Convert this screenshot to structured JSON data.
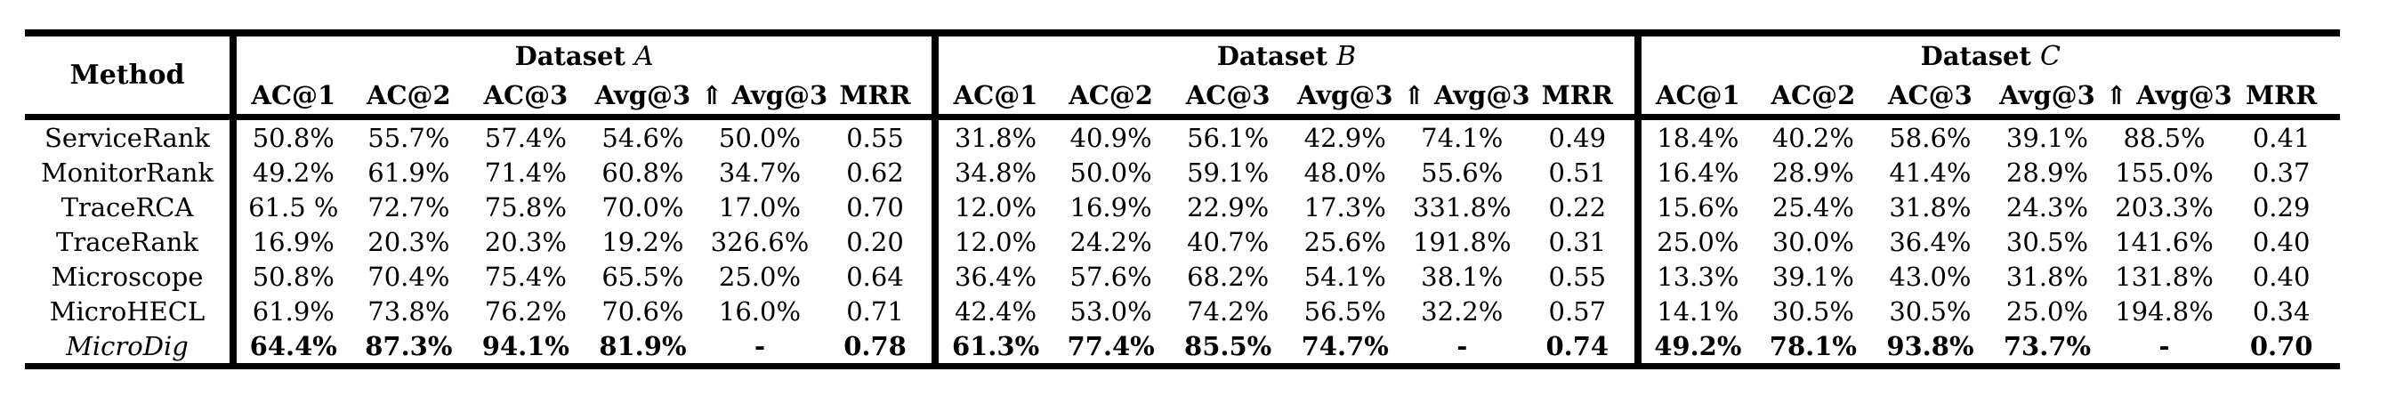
{
  "colors": {
    "text": "#000000",
    "background": "#ffffff",
    "rule": "#000000"
  },
  "table": {
    "method_header": "Method",
    "groups": [
      {
        "label": "Dataset",
        "letter": "A",
        "columns": [
          "AC@1",
          "AC@2",
          "AC@3",
          "Avg@3",
          "⇑ Avg@3",
          "MRR"
        ]
      },
      {
        "label": "Dataset",
        "letter": "B",
        "columns": [
          "AC@1",
          "AC@2",
          "AC@3",
          "Avg@3",
          "⇑ Avg@3",
          "MRR"
        ]
      },
      {
        "label": "Dataset",
        "letter": "C",
        "columns": [
          "AC@1",
          "AC@2",
          "AC@3",
          "Avg@3",
          "⇑ Avg@3",
          "MRR"
        ]
      }
    ],
    "rows": [
      {
        "method": "ServiceRank",
        "italic": false,
        "bold": false,
        "values": [
          "50.8%",
          "55.7%",
          "57.4%",
          "54.6%",
          "50.0%",
          "0.55",
          "31.8%",
          "40.9%",
          "56.1%",
          "42.9%",
          "74.1%",
          "0.49",
          "18.4%",
          "40.2%",
          "58.6%",
          "39.1%",
          "88.5%",
          "0.41"
        ]
      },
      {
        "method": "MonitorRank",
        "italic": false,
        "bold": false,
        "values": [
          "49.2%",
          "61.9%",
          "71.4%",
          "60.8%",
          "34.7%",
          "0.62",
          "34.8%",
          "50.0%",
          "59.1%",
          "48.0%",
          "55.6%",
          "0.51",
          "16.4%",
          "28.9%",
          "41.4%",
          "28.9%",
          "155.0%",
          "0.37"
        ]
      },
      {
        "method": "TraceRCA",
        "italic": false,
        "bold": false,
        "values": [
          "61.5 %",
          "72.7%",
          "75.8%",
          "70.0%",
          "17.0%",
          "0.70",
          "12.0%",
          "16.9%",
          "22.9%",
          "17.3%",
          "331.8%",
          "0.22",
          "15.6%",
          "25.4%",
          "31.8%",
          "24.3%",
          "203.3%",
          "0.29"
        ]
      },
      {
        "method": "TraceRank",
        "italic": false,
        "bold": false,
        "values": [
          "16.9%",
          "20.3%",
          "20.3%",
          "19.2%",
          "326.6%",
          "0.20",
          "12.0%",
          "24.2%",
          "40.7%",
          "25.6%",
          "191.8%",
          "0.31",
          "25.0%",
          "30.0%",
          "36.4%",
          "30.5%",
          "141.6%",
          "0.40"
        ]
      },
      {
        "method": "Microscope",
        "italic": false,
        "bold": false,
        "values": [
          "50.8%",
          "70.4%",
          "75.4%",
          "65.5%",
          "25.0%",
          "0.64",
          "36.4%",
          "57.6%",
          "68.2%",
          "54.1%",
          "38.1%",
          "0.55",
          "13.3%",
          "39.1%",
          "43.0%",
          "31.8%",
          "131.8%",
          "0.40"
        ]
      },
      {
        "method": "MicroHECL",
        "italic": false,
        "bold": false,
        "values": [
          "61.9%",
          "73.8%",
          "76.2%",
          "70.6%",
          "16.0%",
          "0.71",
          "42.4%",
          "53.0%",
          "74.2%",
          "56.5%",
          "32.2%",
          "0.57",
          "14.1%",
          "30.5%",
          "30.5%",
          "25.0%",
          "194.8%",
          "0.34"
        ]
      },
      {
        "method": "MicroDig",
        "italic": true,
        "bold": true,
        "values": [
          "64.4%",
          "87.3%",
          "94.1%",
          "81.9%",
          "-",
          "0.78",
          "61.3%",
          "77.4%",
          "85.5%",
          "74.7%",
          "-",
          "0.74",
          "49.2%",
          "78.1%",
          "93.8%",
          "73.7%",
          "-",
          "0.70"
        ]
      }
    ]
  }
}
